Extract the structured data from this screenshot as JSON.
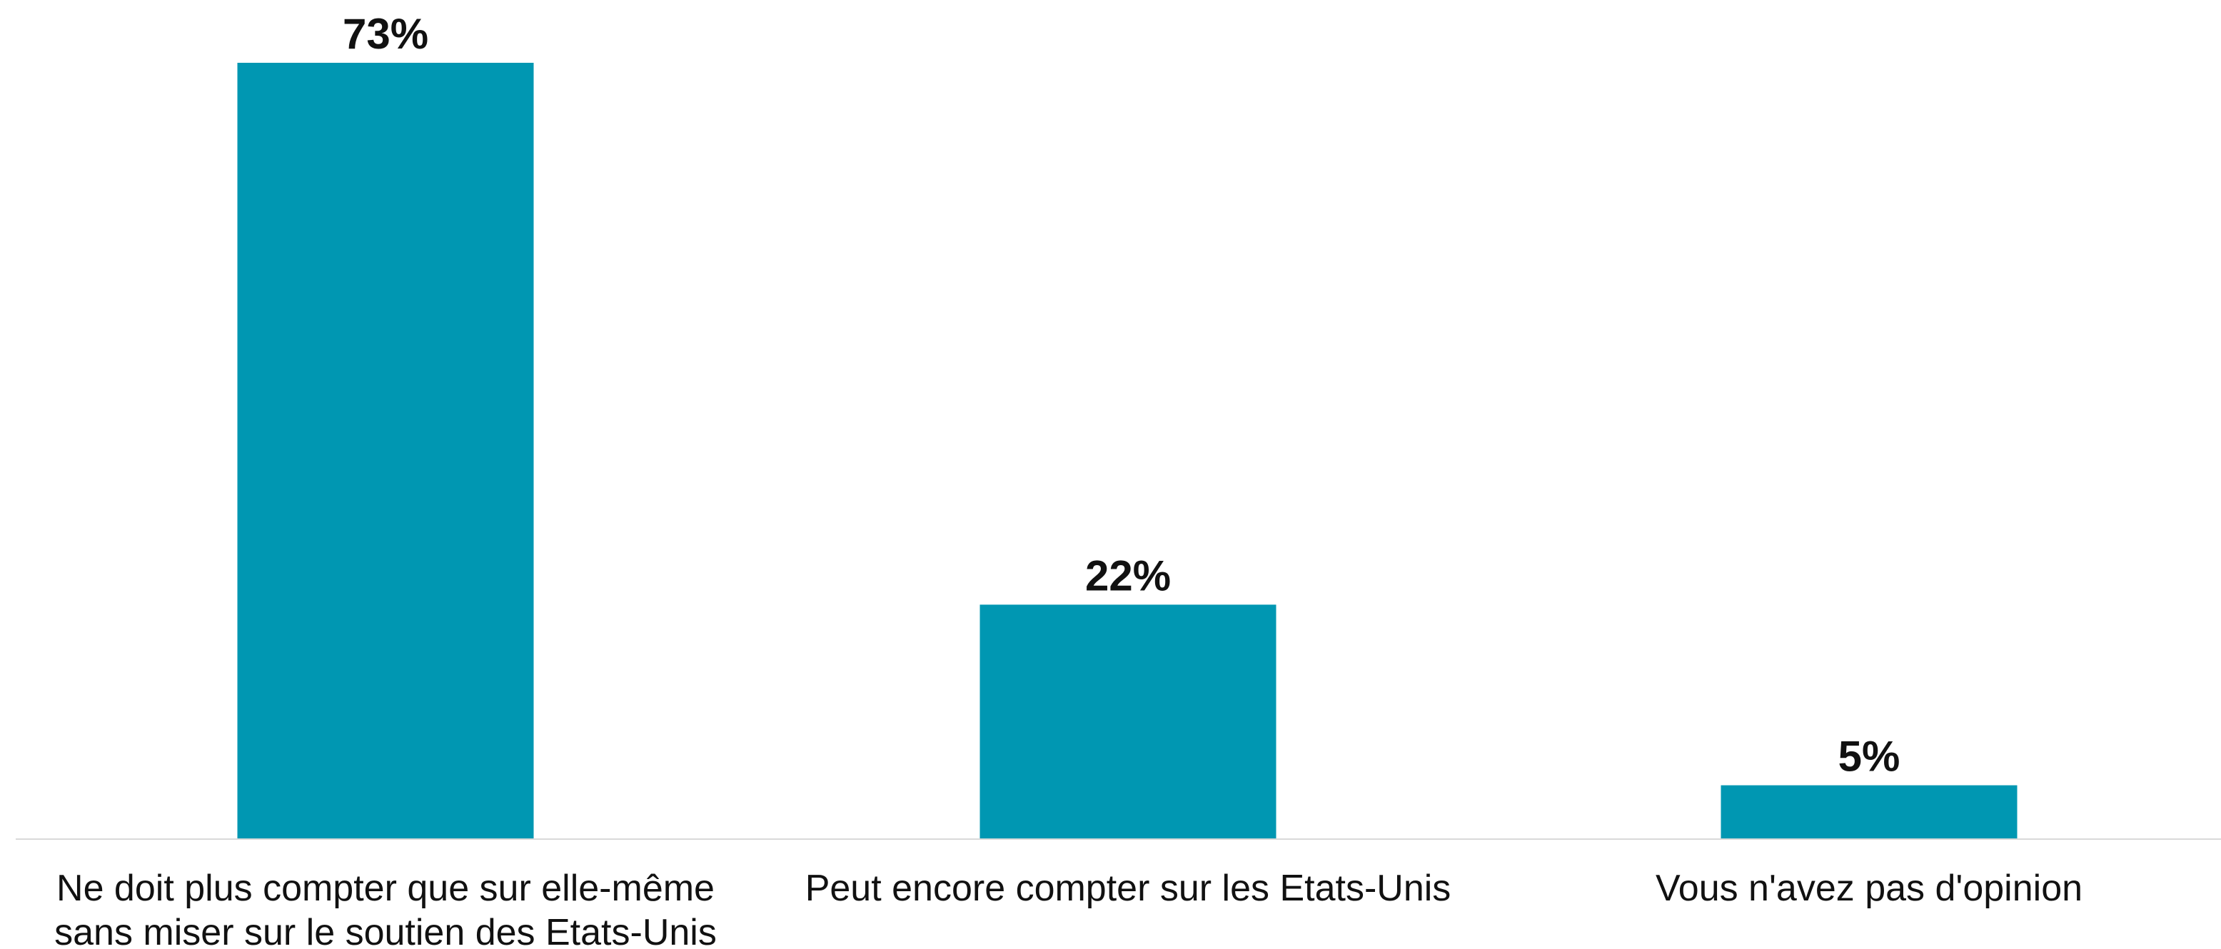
{
  "chart_data": {
    "type": "bar",
    "categories": [
      [
        "Ne doit plus compter que sur elle-même",
        "sans miser sur le soutien des Etats-Unis"
      ],
      [
        "Peut encore compter sur les Etats-Unis"
      ],
      [
        "Vous n'avez pas d'opinion"
      ]
    ],
    "values": [
      73,
      22,
      5
    ],
    "value_labels": [
      "73%",
      "22%",
      "5%"
    ],
    "ylim": [
      0,
      73
    ],
    "grid": false,
    "legend": "none",
    "bar_color": "#0097B2",
    "axis_color": "#D9D9D9"
  }
}
